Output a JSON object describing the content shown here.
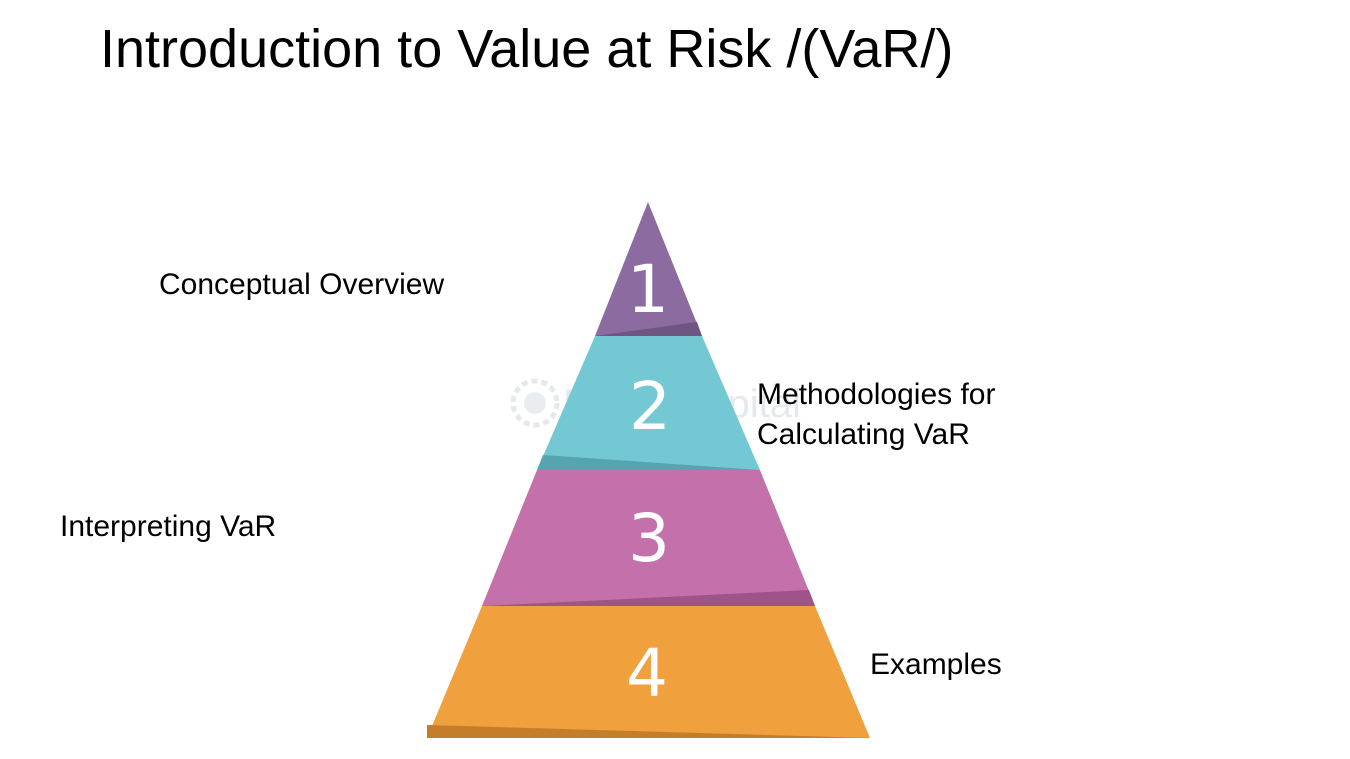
{
  "title": "Introduction to Value at Risk /(VaR/)",
  "watermark": "FasterCapital",
  "tiers": [
    {
      "number": "1",
      "label": "Conceptual Overview",
      "color": "#8c6ba0",
      "shadow": "#6f5582"
    },
    {
      "number": "2",
      "label_line1": "Methodologies for",
      "label_line2": "Calculating VaR",
      "color": "#74c8d4",
      "shadow": "#55a4b0"
    },
    {
      "number": "3",
      "label": "Interpreting VaR",
      "color": "#c471ab",
      "shadow": "#9e5489"
    },
    {
      "number": "4",
      "label": "Examples",
      "color": "#f0a03c",
      "shadow": "#c47e2a"
    }
  ]
}
